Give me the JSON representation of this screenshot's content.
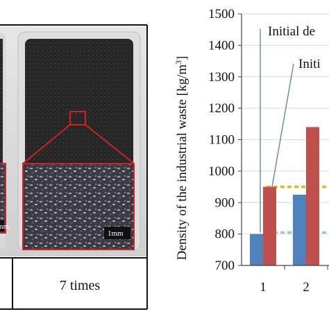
{
  "photo_panel": {
    "caption_7": "7 times",
    "scale_label_left": "mm",
    "scale_label_right": "1mm"
  },
  "chart_data": {
    "type": "bar",
    "ylabel": "Density of the industrial waste [kg/m³]",
    "ylabel_main": "Density of the industrial waste [kg/m",
    "ylabel_sup": "3",
    "ylabel_end": "]",
    "ylim": [
      700,
      1500
    ],
    "yticks": [
      700,
      800,
      900,
      1000,
      1100,
      1200,
      1300,
      1400,
      1500
    ],
    "categories": [
      "1",
      "2"
    ],
    "series": [
      {
        "color": "#4f81bd",
        "values": [
          800,
          925
        ]
      },
      {
        "color": "#c0504d",
        "values": [
          950,
          1140
        ]
      }
    ],
    "reference_lines": [
      {
        "value": 950,
        "color": "#f2b700",
        "style": "dashed"
      },
      {
        "value": 805,
        "color": "#92cddc",
        "style": "dashed"
      }
    ],
    "annotations": [
      "Initial de",
      "Initi"
    ],
    "grid": true
  }
}
